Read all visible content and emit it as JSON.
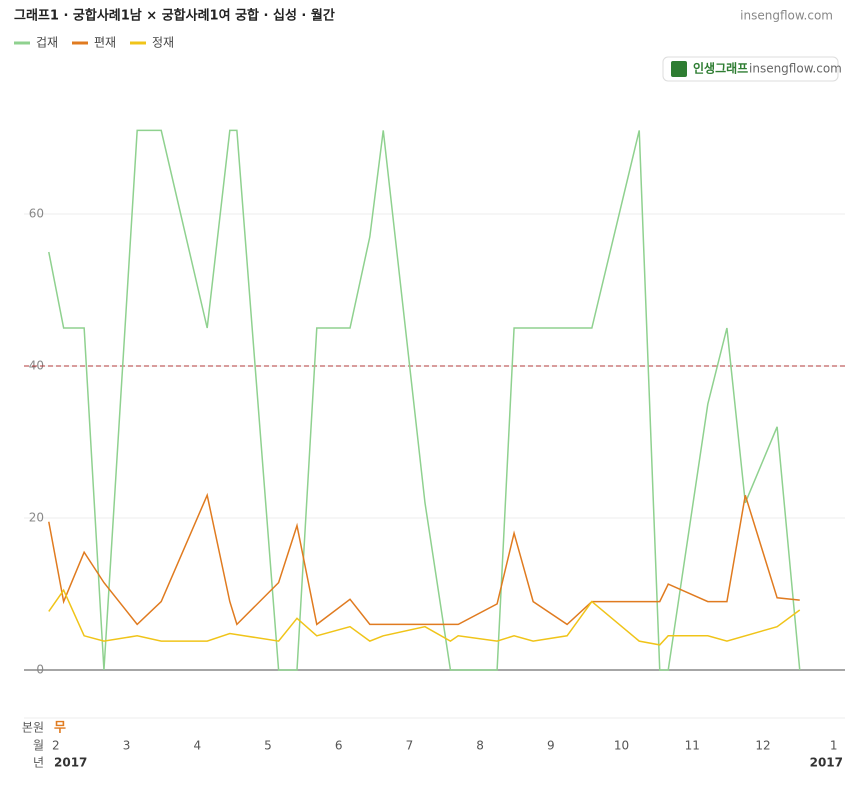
{
  "chart_data": {
    "type": "line",
    "title": "그래프1 · 궁합사례1남 × 궁합사례1여 궁합 · 십성 · 월간",
    "source": "insengflow.com",
    "badge": {
      "brand": "인생그래프",
      "site": "insengflow.com"
    },
    "reference_line": {
      "value": 40,
      "color": "#b03a3a"
    },
    "xlim": [
      1.21,
      13.16
    ],
    "xticks": [
      2,
      3,
      4,
      5,
      6,
      7,
      8,
      9,
      10,
      11,
      12,
      {
        "value": 13,
        "label": "1"
      }
    ],
    "ylim": [
      0,
      75
    ],
    "yticks": [
      0,
      20,
      40,
      60
    ],
    "grid": true,
    "rows": [
      {
        "label": "본원",
        "value": "무"
      },
      {
        "label": "월"
      },
      {
        "label": "년",
        "start": "2017",
        "end": "2017"
      }
    ],
    "series": [
      {
        "name": "겁재",
        "color": "#8fd18f",
        "x": [
          1.9,
          2.11,
          2.4,
          2.68,
          3.15,
          3.49,
          4.14,
          4.46,
          4.56,
          5.15,
          5.41,
          5.69,
          6.16,
          6.44,
          6.63,
          7.22,
          7.58,
          8.24,
          8.48,
          8.99,
          9.58,
          10.25,
          10.54,
          10.66,
          11.22,
          11.49,
          11.75,
          12.2,
          12.52
        ],
        "values": [
          55,
          45,
          45,
          0,
          71,
          71,
          45,
          71,
          71,
          0,
          0,
          45,
          45,
          57,
          71,
          22,
          0,
          0,
          45,
          45,
          45,
          71,
          0,
          0,
          35,
          45,
          22,
          32,
          0
        ]
      },
      {
        "name": "편재",
        "color": "#e07b20",
        "x": [
          1.9,
          2.11,
          2.4,
          2.68,
          3.15,
          3.49,
          4.14,
          4.46,
          4.56,
          5.15,
          5.41,
          5.69,
          6.16,
          6.44,
          6.63,
          7.69,
          8.24,
          8.48,
          8.75,
          9.23,
          9.58,
          10.54,
          10.66,
          11.22,
          11.49,
          11.75,
          12.2,
          12.52
        ],
        "values": [
          19.5,
          9,
          15.5,
          11.5,
          6,
          9,
          23,
          9,
          6,
          11.5,
          19,
          6,
          9.3,
          6,
          6,
          6,
          8.7,
          18,
          9,
          6,
          9,
          9,
          11.3,
          9,
          9,
          23,
          9.5,
          9.2
        ]
      },
      {
        "name": "정재",
        "color": "#f0c419",
        "x": [
          1.9,
          2.11,
          2.4,
          2.68,
          3.15,
          3.49,
          4.14,
          4.46,
          5.15,
          5.41,
          5.69,
          6.16,
          6.44,
          6.63,
          7.22,
          7.58,
          7.69,
          8.24,
          8.48,
          8.75,
          9.23,
          9.58,
          10.25,
          10.54,
          10.66,
          11.22,
          11.49,
          12.2,
          12.52
        ],
        "values": [
          7.7,
          10.5,
          4.5,
          3.8,
          4.5,
          3.8,
          3.8,
          4.8,
          3.8,
          6.8,
          4.5,
          5.7,
          3.8,
          4.5,
          5.7,
          3.8,
          4.5,
          3.8,
          4.5,
          3.8,
          4.5,
          9,
          3.8,
          3.3,
          4.5,
          4.5,
          3.8,
          5.7,
          7.9
        ]
      }
    ]
  }
}
